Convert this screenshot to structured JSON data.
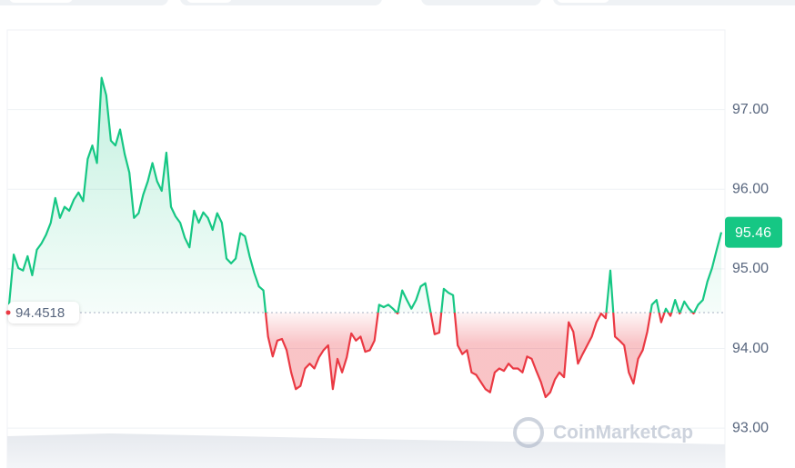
{
  "chart_data": {
    "type": "line",
    "values": [
      94.55,
      95.18,
      95.01,
      94.98,
      95.16,
      94.92,
      95.24,
      95.32,
      95.43,
      95.58,
      95.89,
      95.64,
      95.78,
      95.73,
      95.87,
      95.96,
      95.85,
      96.38,
      96.55,
      96.33,
      97.4,
      97.18,
      96.61,
      96.55,
      96.75,
      96.44,
      96.21,
      95.64,
      95.7,
      95.93,
      96.1,
      96.33,
      96.1,
      95.98,
      96.46,
      95.78,
      95.66,
      95.58,
      95.39,
      95.27,
      95.73,
      95.58,
      95.71,
      95.64,
      95.49,
      95.7,
      95.58,
      95.13,
      95.07,
      95.13,
      95.45,
      95.41,
      95.16,
      94.95,
      94.78,
      94.73,
      94.15,
      93.9,
      94.1,
      94.12,
      93.98,
      93.7,
      93.49,
      93.53,
      93.75,
      93.81,
      93.75,
      93.89,
      93.98,
      94.04,
      93.49,
      93.87,
      93.7,
      93.89,
      94.19,
      94.1,
      94.15,
      93.96,
      93.98,
      94.1,
      94.55,
      94.52,
      94.55,
      94.5,
      94.44,
      94.73,
      94.61,
      94.5,
      94.61,
      94.78,
      94.82,
      94.5,
      94.18,
      94.2,
      94.75,
      94.7,
      94.67,
      94.04,
      93.93,
      93.98,
      93.7,
      93.67,
      93.58,
      93.49,
      93.45,
      93.7,
      93.75,
      93.72,
      93.81,
      93.75,
      93.75,
      93.7,
      93.9,
      93.87,
      93.72,
      93.58,
      93.39,
      93.45,
      93.61,
      93.7,
      93.64,
      94.33,
      94.21,
      93.81,
      93.93,
      94.04,
      94.15,
      94.33,
      94.44,
      94.38,
      94.98,
      94.15,
      94.1,
      94.04,
      93.7,
      93.56,
      93.87,
      93.98,
      94.21,
      94.55,
      94.61,
      94.33,
      94.5,
      94.41,
      94.61,
      94.44,
      94.59,
      94.5,
      94.44,
      94.55,
      94.61,
      94.84,
      95.01,
      95.24,
      95.46
    ],
    "color": "#16c784",
    "negative_color": "#ea3943",
    "baseline": 94.4518,
    "ylim": [
      92.5,
      98.0
    ],
    "yticks": [
      {
        "value": 93,
        "label": "93.00"
      },
      {
        "value": 94,
        "label": "94.00"
      },
      {
        "value": 95,
        "label": "95.00"
      },
      {
        "value": 96,
        "label": "96.00"
      },
      {
        "value": 97,
        "label": "97.00"
      }
    ],
    "grid": true,
    "watermark": "CoinMarketCap"
  }
}
